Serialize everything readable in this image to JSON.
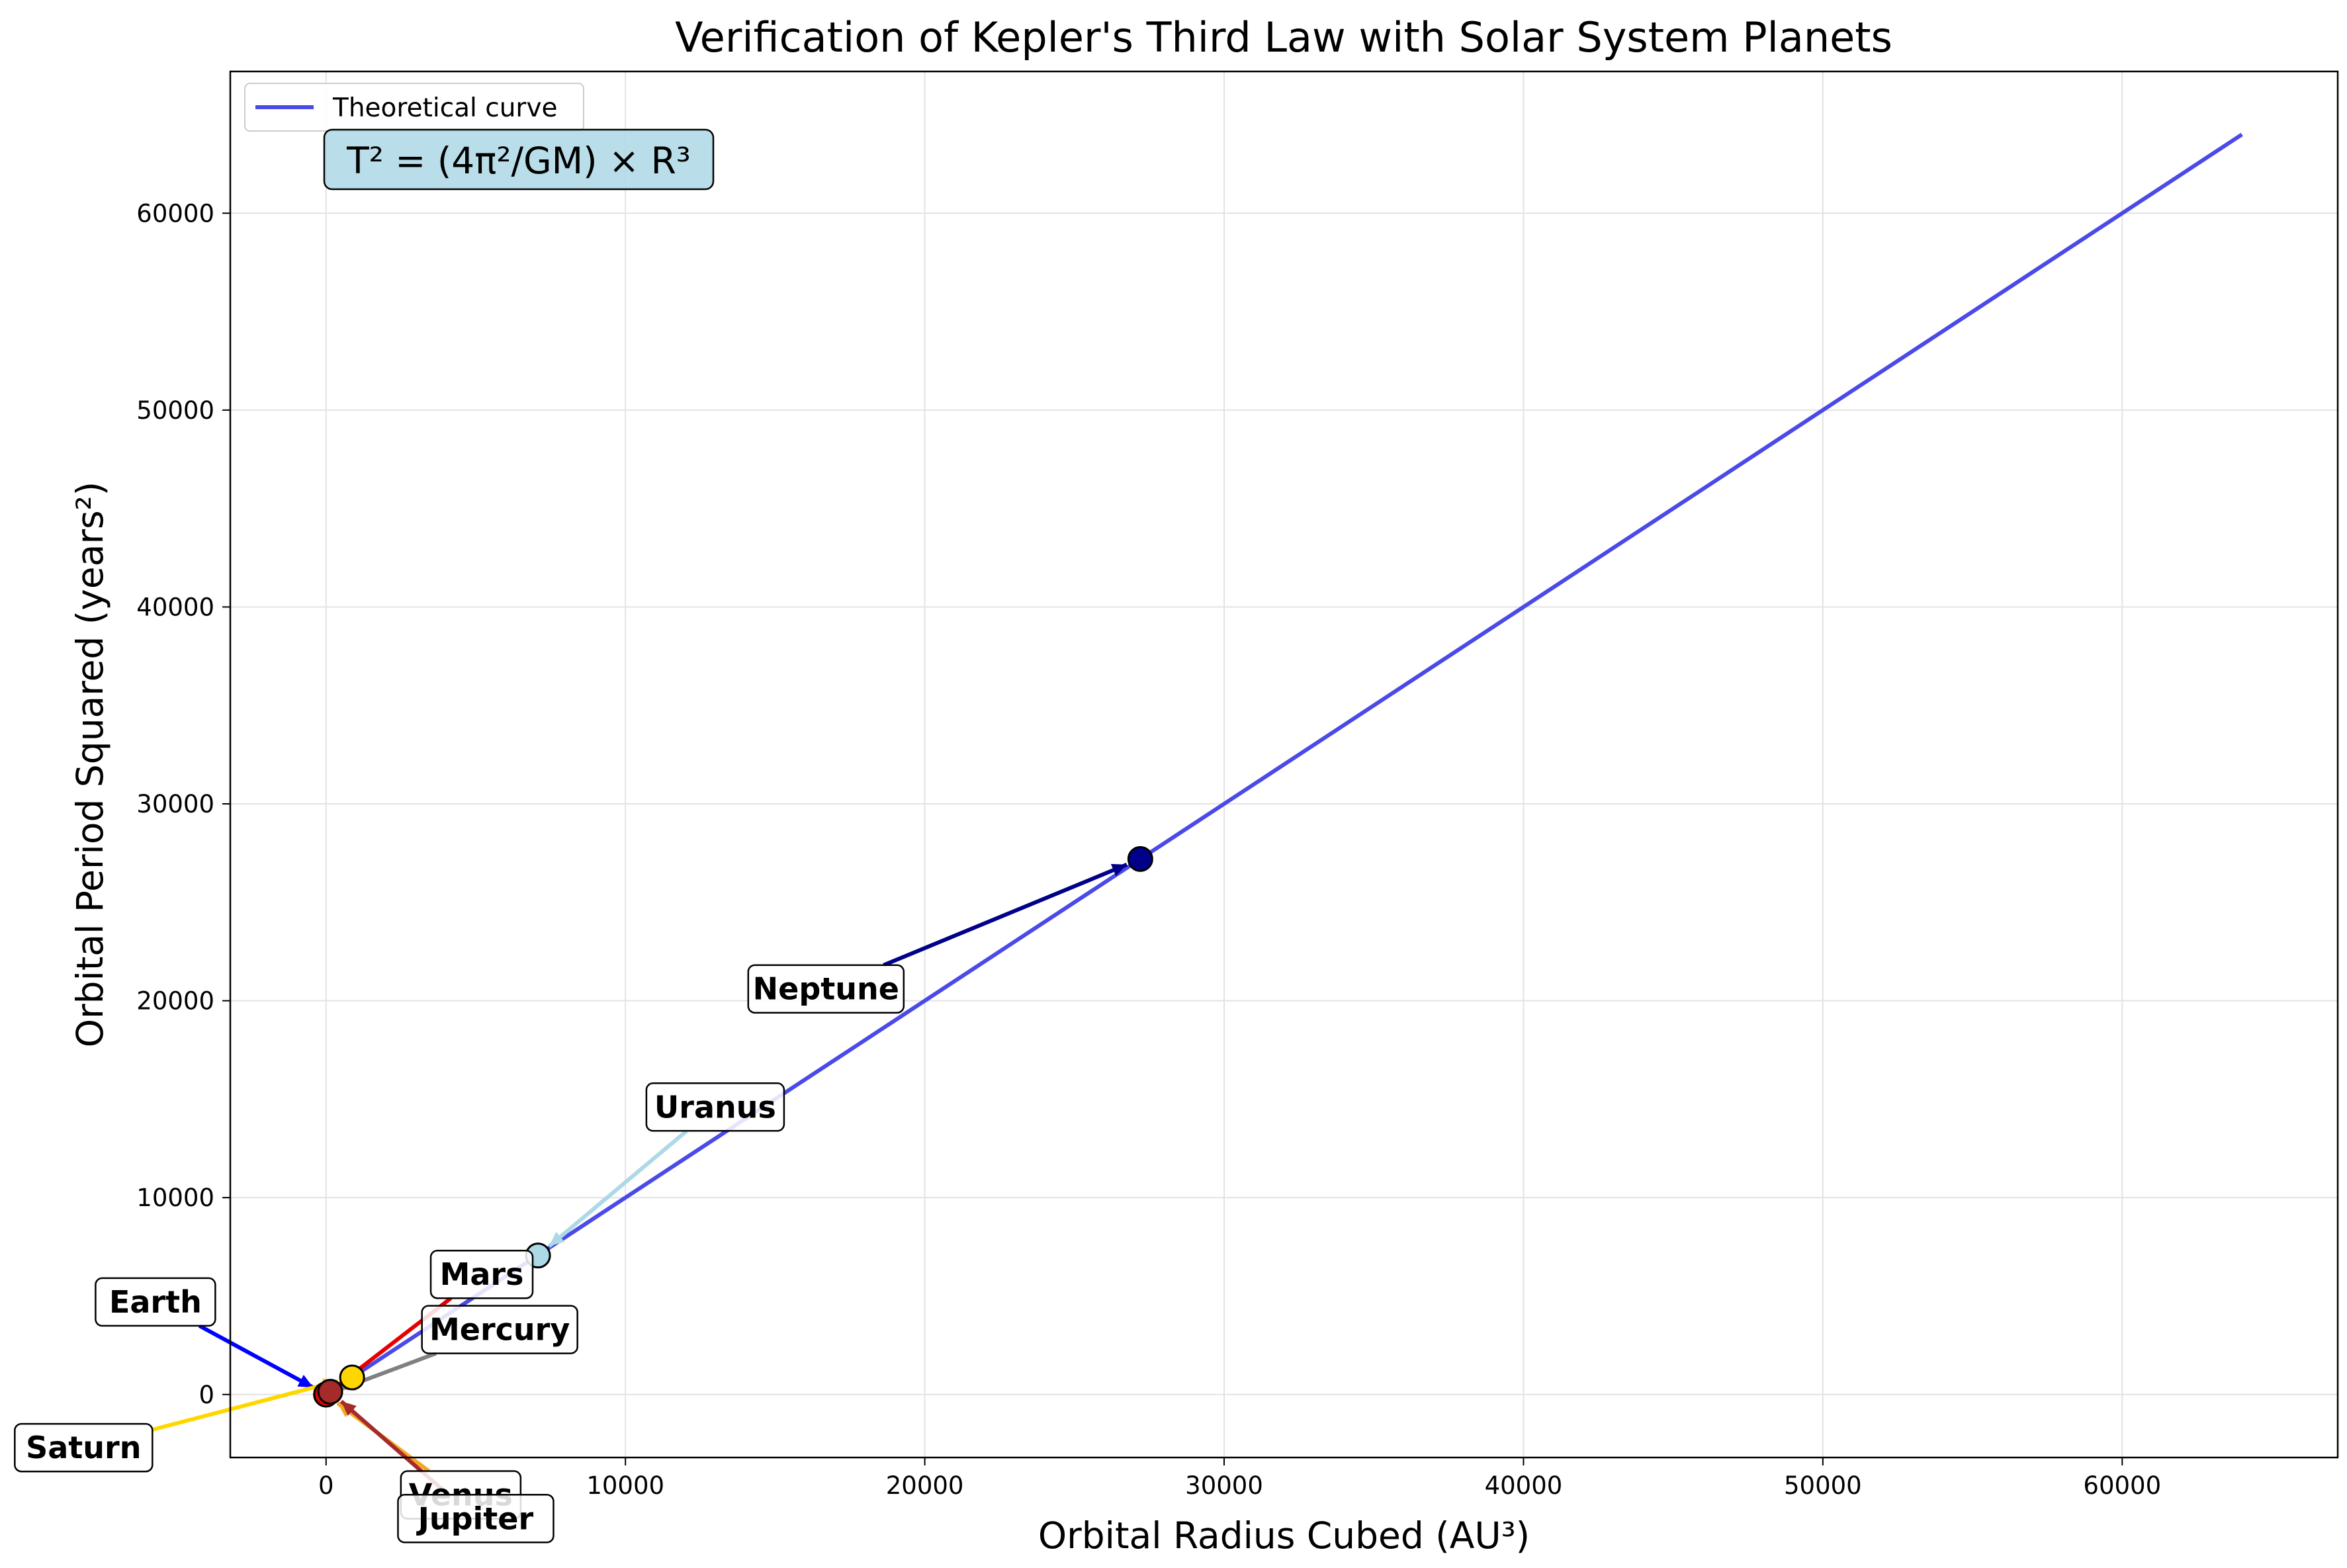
{
  "chart_data": {
    "type": "scatter",
    "title": "Verification of Kepler's Third Law with Solar System Planets",
    "xlabel": "Orbital Radius Cubed (AU³)",
    "ylabel": "Orbital Period Squared (years²)",
    "xlim": [
      -3200,
      67200
    ],
    "ylim": [
      -3200,
      67200
    ],
    "xticks": [
      0,
      10000,
      20000,
      30000,
      40000,
      50000,
      60000
    ],
    "yticks": [
      0,
      10000,
      20000,
      30000,
      40000,
      50000,
      60000
    ],
    "grid": true,
    "legend": {
      "position": "top-left",
      "entries": [
        "Theoretical curve"
      ]
    },
    "formula": "T² = (4π²/GM) × R³",
    "theoretical_curve": {
      "name": "Theoretical curve",
      "color": "#4a4ae8",
      "x": [
        0,
        64000
      ],
      "y": [
        0,
        64000
      ]
    },
    "planets": [
      {
        "name": "Mercury",
        "x": 0.058,
        "y": 0.058,
        "color": "#808080",
        "label_x": 5800,
        "label_y": 3300
      },
      {
        "name": "Venus",
        "x": 0.38,
        "y": 0.38,
        "color": "#f5a623",
        "label_x": 4500,
        "label_y": -5100
      },
      {
        "name": "Earth",
        "x": 1,
        "y": 1,
        "color": "#0000ff",
        "label_x": -5700,
        "label_y": 4700
      },
      {
        "name": "Mars",
        "x": 3.5,
        "y": 3.5,
        "color": "#e60000",
        "label_x": 5200,
        "label_y": 6100
      },
      {
        "name": "Jupiter",
        "x": 140,
        "y": 141,
        "color": "#a52a2a",
        "label_x": 5000,
        "label_y": -6300
      },
      {
        "name": "Saturn",
        "x": 870,
        "y": 868,
        "color": "#ffd700",
        "label_x": -8100,
        "label_y": -2700
      },
      {
        "name": "Uranus",
        "x": 7080,
        "y": 7060,
        "color": "#add8e6",
        "label_x": 13000,
        "label_y": 14600
      },
      {
        "name": "Neptune",
        "x": 27200,
        "y": 27200,
        "color": "#00008b",
        "label_x": 16700,
        "label_y": 20600
      }
    ]
  }
}
